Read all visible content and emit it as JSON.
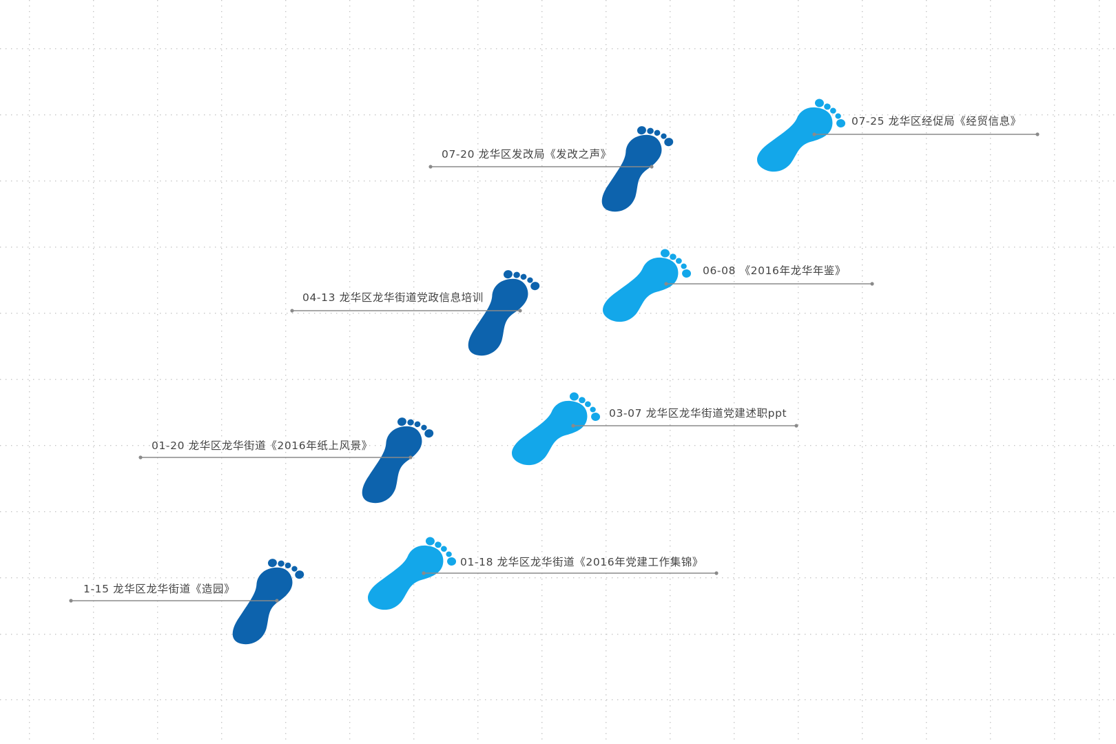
{
  "colors": {
    "background": "#ffffff",
    "grid_dots": "#c4c4c4",
    "foot_dark": "#0d63ad",
    "foot_light": "#13a7ea",
    "leader_line": "#8a8a8a",
    "label_text": "#444444"
  },
  "steps": [
    {
      "id": "step-1-15",
      "side": "left",
      "tone": "dark",
      "icon": "footprint-icon",
      "label": "1-15 龙华区龙华街道《造园》"
    },
    {
      "id": "step-01-18",
      "side": "right",
      "tone": "light",
      "icon": "footprint-icon",
      "label": "01-18 龙华区龙华街道《2016年党建工作集锦》"
    },
    {
      "id": "step-01-20",
      "side": "left",
      "tone": "dark",
      "icon": "footprint-icon",
      "label": "01-20  龙华区龙华街道《2016年纸上风景》"
    },
    {
      "id": "step-03-07",
      "side": "right",
      "tone": "light",
      "icon": "footprint-icon",
      "label": "03-07 龙华区龙华街道党建述职ppt"
    },
    {
      "id": "step-04-13",
      "side": "left",
      "tone": "dark",
      "icon": "footprint-icon",
      "label": "04-13 龙华区龙华街道党政信息培训"
    },
    {
      "id": "step-06-08",
      "side": "right",
      "tone": "light",
      "icon": "footprint-icon",
      "label": "06-08 《2016年龙华年鉴》"
    },
    {
      "id": "step-07-20",
      "side": "left",
      "tone": "dark",
      "icon": "footprint-icon",
      "label": "07-20 龙华区发改局《发改之声》"
    },
    {
      "id": "step-07-25",
      "side": "right",
      "tone": "light",
      "icon": "footprint-icon",
      "label": "07-25 龙华区经促局《经贸信息》"
    }
  ]
}
